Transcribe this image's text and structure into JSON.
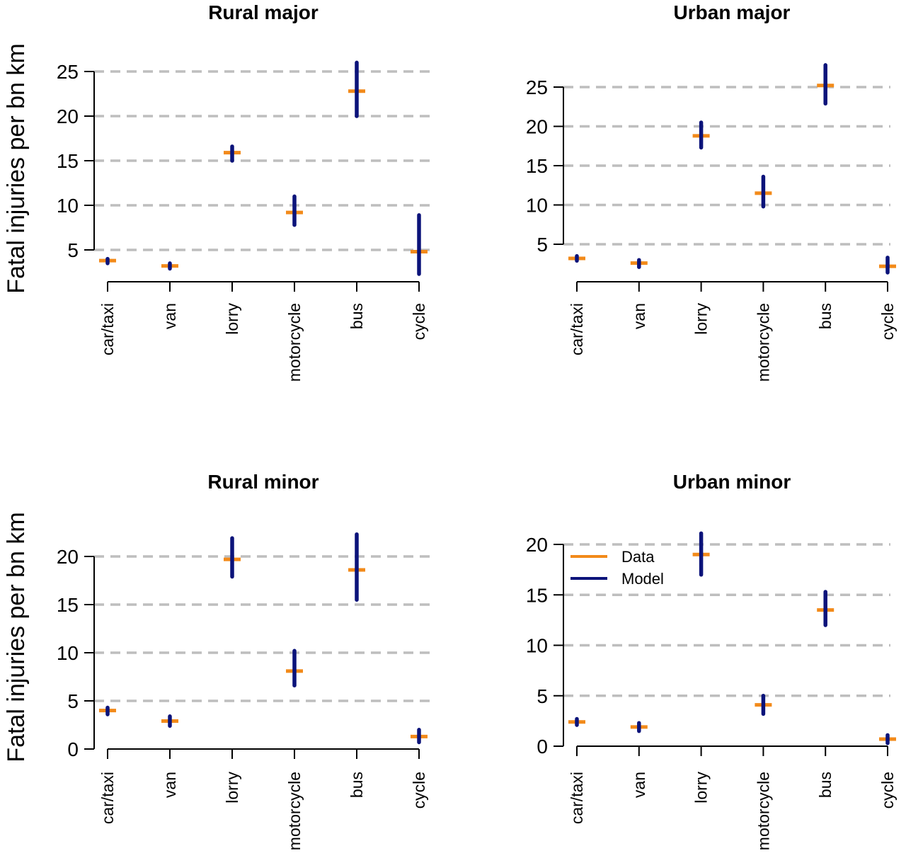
{
  "figure": {
    "ylabel": "Fatal injuries per bn km",
    "colors": {
      "data": "#F28A1A",
      "model": "#0B137A",
      "grid": "#BEBEBE",
      "axis": "#000000"
    },
    "legend": {
      "entries": [
        {
          "label": "Data",
          "color": "#F28A1A"
        },
        {
          "label": "Model",
          "color": "#0B137A"
        }
      ],
      "placement": "top-left of Urban minor panel"
    }
  },
  "chart_data": [
    {
      "type": "scatter",
      "title": "Rural major",
      "categories": [
        "car/taxi",
        "van",
        "lorry",
        "motorcycle",
        "bus",
        "cycle"
      ],
      "ylabel": "Fatal injuries per bn km",
      "ylim": [
        1.5,
        26.5
      ],
      "yticks": [
        5,
        10,
        15,
        20,
        25
      ],
      "grid": true,
      "series": [
        {
          "name": "Data",
          "values": [
            3.8,
            3.2,
            15.9,
            9.2,
            22.8,
            4.8
          ]
        },
        {
          "name": "Model",
          "low": [
            3.5,
            2.9,
            15.0,
            7.8,
            20.0,
            2.3
          ],
          "high": [
            4.0,
            3.5,
            16.6,
            11.0,
            26.0,
            8.9
          ]
        }
      ]
    },
    {
      "type": "scatter",
      "title": "Urban major",
      "categories": [
        "car/taxi",
        "van",
        "lorry",
        "motorcycle",
        "bus",
        "cycle"
      ],
      "ylim": [
        1,
        28
      ],
      "yticks": [
        5,
        10,
        15,
        20,
        25
      ],
      "grid": true,
      "series": [
        {
          "name": "Data",
          "values": [
            3.2,
            2.6,
            18.8,
            11.5,
            25.2,
            2.2
          ]
        },
        {
          "name": "Model",
          "low": [
            2.9,
            2.1,
            17.3,
            9.8,
            22.9,
            1.4
          ],
          "high": [
            3.5,
            3.0,
            20.5,
            13.6,
            27.8,
            3.3
          ]
        }
      ]
    },
    {
      "type": "scatter",
      "title": "Rural minor",
      "categories": [
        "car/taxi",
        "van",
        "lorry",
        "motorcycle",
        "bus",
        "cycle"
      ],
      "ylabel": "Fatal injuries per bn km",
      "ylim": [
        0,
        23
      ],
      "yticks": [
        0,
        5,
        10,
        15,
        20
      ],
      "grid": true,
      "series": [
        {
          "name": "Data",
          "values": [
            4.0,
            2.9,
            19.7,
            8.1,
            18.6,
            1.3
          ]
        },
        {
          "name": "Model",
          "low": [
            3.6,
            2.4,
            17.9,
            6.6,
            15.5,
            0.7
          ],
          "high": [
            4.3,
            3.4,
            21.9,
            10.2,
            22.3,
            2.0
          ]
        }
      ]
    },
    {
      "type": "scatter",
      "title": "Urban minor",
      "categories": [
        "car/taxi",
        "van",
        "lorry",
        "motorcycle",
        "bus",
        "cycle"
      ],
      "ylim": [
        0,
        21.5
      ],
      "yticks": [
        0,
        5,
        10,
        15,
        20
      ],
      "grid": true,
      "series": [
        {
          "name": "Data",
          "values": [
            2.4,
            1.9,
            19.0,
            4.1,
            13.5,
            0.7
          ]
        },
        {
          "name": "Model",
          "low": [
            2.1,
            1.5,
            17.0,
            3.2,
            12.0,
            0.3
          ],
          "high": [
            2.7,
            2.3,
            21.1,
            5.0,
            15.3,
            1.1
          ]
        }
      ]
    }
  ]
}
